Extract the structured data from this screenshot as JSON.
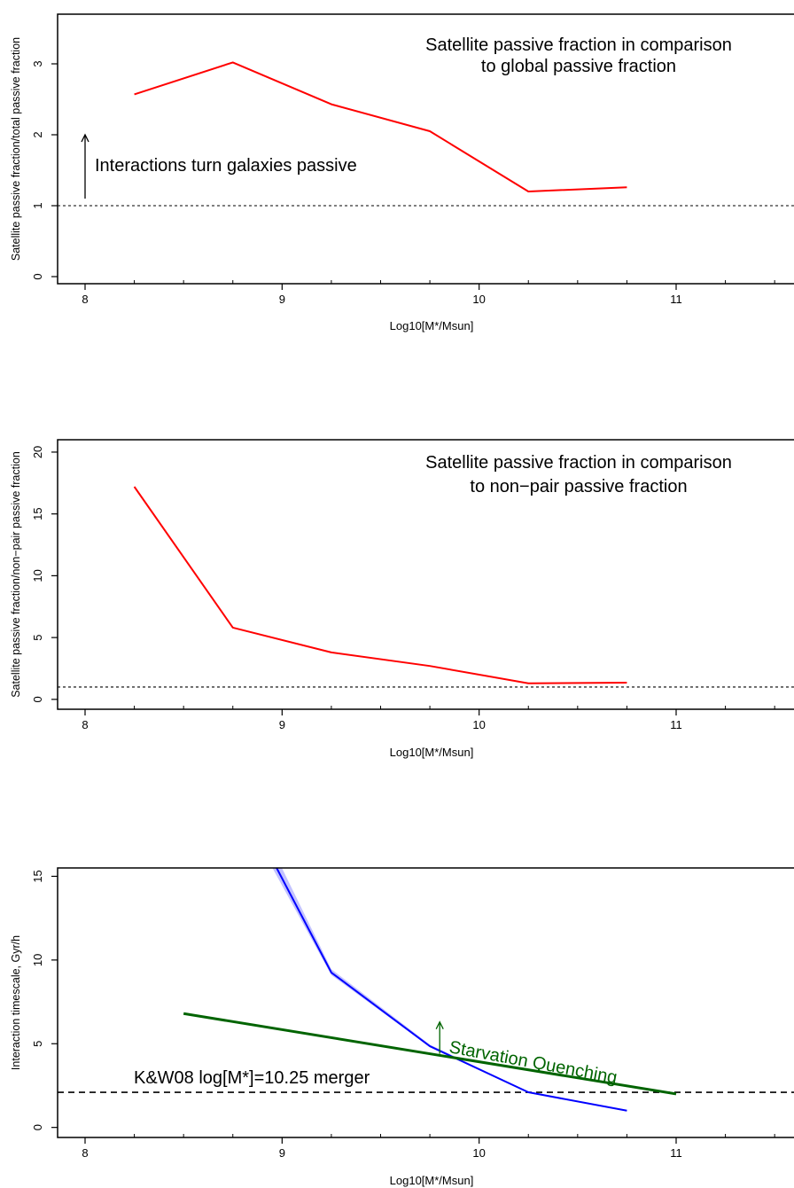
{
  "chart_data": [
    {
      "type": "line",
      "title": [
        "Satellite passive fraction in comparison",
        "to global passive fraction"
      ],
      "xlabel": "Log10[M*/Msun]",
      "ylabel": "Satellite passive fraction/total passive fraction",
      "xlim": [
        7.9,
        11.6
      ],
      "ylim": [
        -0.1,
        3.7
      ],
      "xticks": [
        8,
        9,
        10,
        11
      ],
      "yticks": [
        0,
        1,
        2,
        3
      ],
      "grid": false,
      "series": [
        {
          "color": "#ff0000",
          "x": [
            8.25,
            8.75,
            9.25,
            9.75,
            10.25,
            10.75
          ],
          "y": [
            2.57,
            3.02,
            2.43,
            2.05,
            1.2,
            1.26
          ]
        }
      ],
      "reference_line": {
        "y": 1,
        "style": "dotted"
      },
      "annotation": {
        "text": "Interactions turn galaxies passive",
        "arrow_x": 8.0,
        "arrow_from": 1.1,
        "arrow_to": 2.0
      }
    },
    {
      "type": "line",
      "title": [
        "Satellite passive fraction in comparison",
        "to non−pair passive fraction"
      ],
      "xlabel": "Log10[M*/Msun]",
      "ylabel": "Satellite passive fraction/non−pair passive fraction",
      "xlim": [
        7.9,
        11.6
      ],
      "ylim": [
        -0.8,
        21
      ],
      "xticks": [
        8,
        9,
        10,
        11
      ],
      "yticks": [
        0,
        5,
        10,
        15,
        20
      ],
      "grid": false,
      "series": [
        {
          "color": "#ff0000",
          "x": [
            8.25,
            8.75,
            9.25,
            9.75,
            10.25,
            10.75
          ],
          "y": [
            17.2,
            5.8,
            3.8,
            2.7,
            1.3,
            1.35
          ]
        }
      ],
      "reference_line": {
        "y": 1,
        "style": "dotted"
      }
    },
    {
      "type": "line",
      "xlabel": "Log10[M*/Msun]",
      "ylabel": "Interaction timescale, Gyr/h",
      "xlim": [
        7.9,
        11.6
      ],
      "ylim": [
        -0.6,
        15.5
      ],
      "xticks": [
        8,
        9,
        10,
        11
      ],
      "yticks": [
        0,
        5,
        10,
        15
      ],
      "grid": false,
      "series": [
        {
          "color": "#0000ff",
          "band_color": "#9999ff",
          "x": [
            8.75,
            9.25,
            9.75,
            10.25,
            10.75
          ],
          "y": [
            20.5,
            9.25,
            4.85,
            2.1,
            1.0
          ],
          "y_low": [
            19.8,
            9.1,
            4.8,
            2.05,
            0.98
          ],
          "y_high": [
            21.5,
            9.45,
            4.95,
            2.15,
            1.02
          ]
        },
        {
          "color": "#006400",
          "x": [
            8.5,
            11.0
          ],
          "y": [
            6.8,
            2.0
          ]
        }
      ],
      "reference_line": {
        "y": 2.1,
        "style": "dashed",
        "label": "K&W08 log[M*]=10.25 merger"
      },
      "annotation": {
        "text": "Starvation Quenching",
        "color": "#006400",
        "arrow_x": 9.8,
        "arrow_from": 4.4,
        "arrow_to": 6.3
      }
    }
  ]
}
